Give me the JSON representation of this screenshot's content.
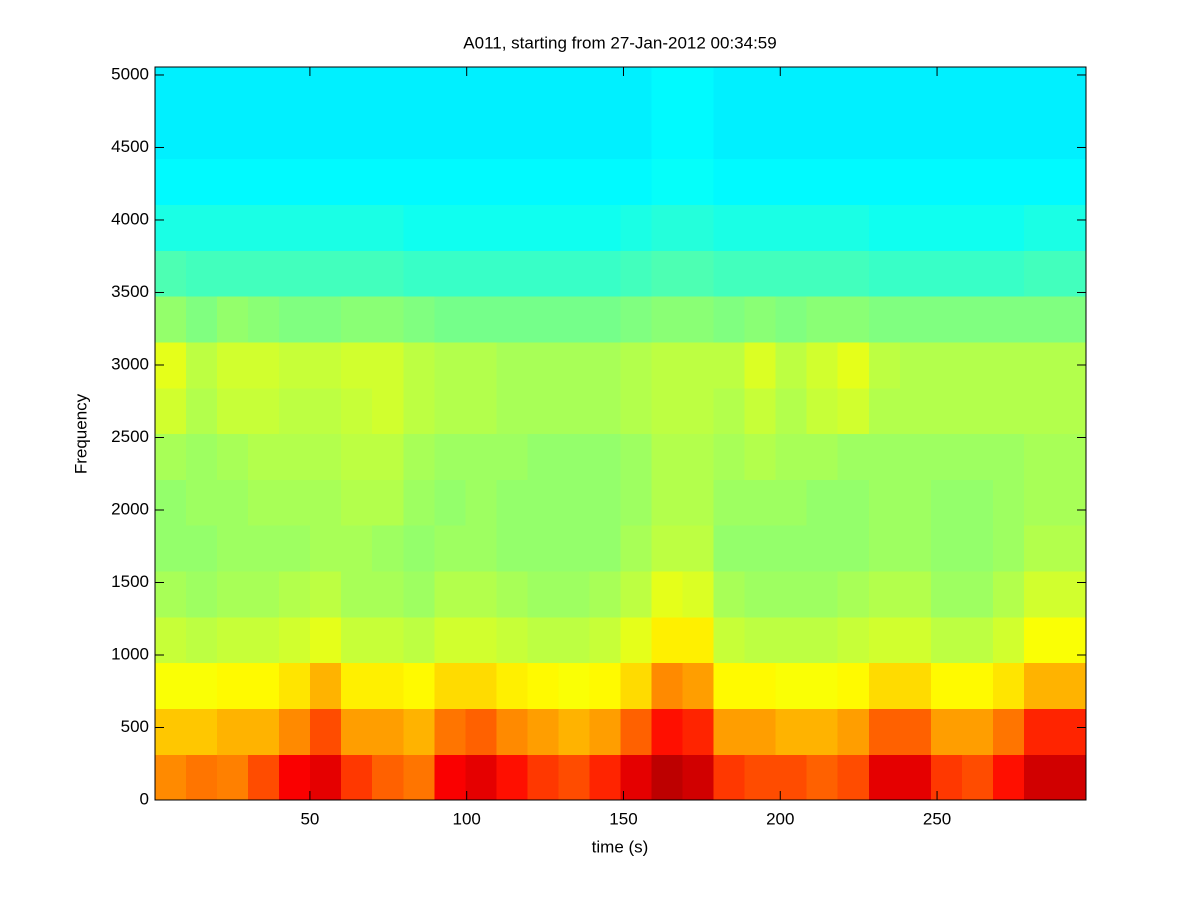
{
  "chart_data": {
    "type": "heatmap",
    "title": "A011, starting from 27-Jan-2012 00:34:59",
    "xlabel": "time (s)",
    "ylabel": "Frequency",
    "xlim": [
      0.6,
      297.5
    ],
    "ylim": [
      0,
      5055
    ],
    "xticks": [
      50,
      100,
      150,
      200,
      250
    ],
    "yticks": [
      0,
      500,
      1000,
      1500,
      2000,
      2500,
      3000,
      3500,
      4000,
      4500,
      5000
    ],
    "colormap": "jet",
    "clim": [
      0,
      1
    ],
    "z": [
      [
        0.74,
        0.76,
        0.75,
        0.8,
        0.88,
        0.9,
        0.82,
        0.78,
        0.76,
        0.88,
        0.9,
        0.86,
        0.82,
        0.8,
        0.84,
        0.9,
        0.94,
        0.92,
        0.82,
        0.8,
        0.8,
        0.78,
        0.8,
        0.9,
        0.9,
        0.82,
        0.8,
        0.86,
        0.92,
        0.92
      ],
      [
        0.68,
        0.68,
        0.7,
        0.7,
        0.74,
        0.8,
        0.72,
        0.72,
        0.7,
        0.76,
        0.78,
        0.74,
        0.72,
        0.7,
        0.72,
        0.78,
        0.86,
        0.84,
        0.72,
        0.72,
        0.7,
        0.7,
        0.72,
        0.78,
        0.78,
        0.72,
        0.72,
        0.76,
        0.84,
        0.84
      ],
      [
        0.62,
        0.62,
        0.63,
        0.63,
        0.65,
        0.7,
        0.64,
        0.64,
        0.63,
        0.66,
        0.66,
        0.64,
        0.63,
        0.62,
        0.63,
        0.66,
        0.74,
        0.72,
        0.63,
        0.63,
        0.62,
        0.62,
        0.63,
        0.66,
        0.66,
        0.63,
        0.63,
        0.65,
        0.7,
        0.7
      ],
      [
        0.57,
        0.56,
        0.57,
        0.57,
        0.58,
        0.6,
        0.57,
        0.57,
        0.56,
        0.58,
        0.58,
        0.57,
        0.56,
        0.56,
        0.57,
        0.6,
        0.64,
        0.64,
        0.57,
        0.56,
        0.56,
        0.56,
        0.57,
        0.58,
        0.58,
        0.56,
        0.56,
        0.58,
        0.62,
        0.62
      ],
      [
        0.54,
        0.53,
        0.54,
        0.54,
        0.55,
        0.56,
        0.54,
        0.54,
        0.53,
        0.55,
        0.55,
        0.54,
        0.53,
        0.53,
        0.54,
        0.56,
        0.6,
        0.59,
        0.54,
        0.53,
        0.53,
        0.53,
        0.54,
        0.55,
        0.55,
        0.53,
        0.53,
        0.55,
        0.58,
        0.58
      ],
      [
        0.52,
        0.52,
        0.53,
        0.53,
        0.53,
        0.54,
        0.54,
        0.53,
        0.52,
        0.53,
        0.53,
        0.52,
        0.52,
        0.52,
        0.52,
        0.54,
        0.56,
        0.56,
        0.52,
        0.52,
        0.52,
        0.52,
        0.52,
        0.53,
        0.53,
        0.52,
        0.52,
        0.53,
        0.55,
        0.55
      ],
      [
        0.52,
        0.53,
        0.53,
        0.54,
        0.54,
        0.54,
        0.55,
        0.55,
        0.53,
        0.52,
        0.53,
        0.52,
        0.52,
        0.52,
        0.52,
        0.53,
        0.55,
        0.55,
        0.53,
        0.53,
        0.53,
        0.52,
        0.52,
        0.53,
        0.53,
        0.52,
        0.52,
        0.53,
        0.54,
        0.54
      ],
      [
        0.54,
        0.53,
        0.54,
        0.55,
        0.55,
        0.55,
        0.56,
        0.56,
        0.54,
        0.53,
        0.53,
        0.53,
        0.52,
        0.52,
        0.52,
        0.53,
        0.55,
        0.55,
        0.54,
        0.55,
        0.54,
        0.54,
        0.53,
        0.53,
        0.53,
        0.53,
        0.53,
        0.53,
        0.54,
        0.54
      ],
      [
        0.58,
        0.55,
        0.57,
        0.57,
        0.56,
        0.56,
        0.57,
        0.58,
        0.56,
        0.55,
        0.55,
        0.54,
        0.54,
        0.54,
        0.54,
        0.55,
        0.56,
        0.56,
        0.55,
        0.57,
        0.55,
        0.57,
        0.58,
        0.55,
        0.55,
        0.55,
        0.55,
        0.55,
        0.55,
        0.55
      ],
      [
        0.6,
        0.56,
        0.58,
        0.58,
        0.57,
        0.57,
        0.58,
        0.58,
        0.56,
        0.55,
        0.55,
        0.54,
        0.54,
        0.54,
        0.54,
        0.55,
        0.56,
        0.56,
        0.56,
        0.59,
        0.56,
        0.58,
        0.6,
        0.56,
        0.55,
        0.55,
        0.55,
        0.55,
        0.55,
        0.55
      ],
      [
        0.52,
        0.5,
        0.52,
        0.51,
        0.5,
        0.5,
        0.51,
        0.51,
        0.5,
        0.49,
        0.49,
        0.49,
        0.49,
        0.49,
        0.49,
        0.5,
        0.51,
        0.51,
        0.5,
        0.51,
        0.5,
        0.51,
        0.51,
        0.5,
        0.5,
        0.5,
        0.5,
        0.5,
        0.5,
        0.5
      ],
      [
        0.45,
        0.44,
        0.44,
        0.44,
        0.44,
        0.44,
        0.44,
        0.44,
        0.43,
        0.43,
        0.43,
        0.43,
        0.43,
        0.43,
        0.43,
        0.44,
        0.45,
        0.45,
        0.44,
        0.44,
        0.44,
        0.44,
        0.44,
        0.43,
        0.43,
        0.43,
        0.43,
        0.43,
        0.44,
        0.44
      ],
      [
        0.4,
        0.4,
        0.4,
        0.4,
        0.4,
        0.4,
        0.4,
        0.4,
        0.39,
        0.39,
        0.39,
        0.39,
        0.39,
        0.39,
        0.39,
        0.4,
        0.41,
        0.41,
        0.4,
        0.4,
        0.4,
        0.4,
        0.4,
        0.39,
        0.39,
        0.39,
        0.39,
        0.39,
        0.4,
        0.4
      ],
      [
        0.37,
        0.37,
        0.37,
        0.37,
        0.37,
        0.37,
        0.37,
        0.37,
        0.37,
        0.37,
        0.37,
        0.37,
        0.37,
        0.37,
        0.37,
        0.37,
        0.38,
        0.38,
        0.37,
        0.37,
        0.37,
        0.37,
        0.37,
        0.37,
        0.37,
        0.37,
        0.37,
        0.37,
        0.37,
        0.37
      ],
      [
        0.36,
        0.36,
        0.36,
        0.36,
        0.36,
        0.36,
        0.36,
        0.36,
        0.36,
        0.36,
        0.36,
        0.36,
        0.36,
        0.36,
        0.36,
        0.36,
        0.37,
        0.37,
        0.36,
        0.36,
        0.36,
        0.36,
        0.36,
        0.36,
        0.36,
        0.36,
        0.36,
        0.36,
        0.36,
        0.36
      ],
      [
        0.36,
        0.36,
        0.36,
        0.36,
        0.36,
        0.36,
        0.36,
        0.36,
        0.36,
        0.36,
        0.36,
        0.36,
        0.36,
        0.36,
        0.36,
        0.36,
        0.37,
        0.37,
        0.36,
        0.36,
        0.36,
        0.36,
        0.36,
        0.36,
        0.36,
        0.36,
        0.36,
        0.36,
        0.36,
        0.36
      ]
    ]
  }
}
